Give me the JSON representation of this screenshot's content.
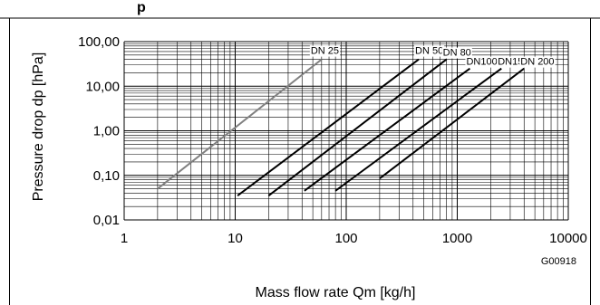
{
  "heading_fragment": "p",
  "figure_code": "G00918",
  "chart_data": {
    "type": "line",
    "title": "",
    "xlabel": "Mass flow rate Qm  [kg/h]",
    "ylabel": "Pressure drop dp  [hPa]",
    "x_scale": "log",
    "y_scale": "log",
    "xlim": [
      1,
      10000
    ],
    "ylim": [
      0.01,
      100
    ],
    "grid": true,
    "x_ticks": [
      {
        "value": 1,
        "label": "1"
      },
      {
        "value": 10,
        "label": "10"
      },
      {
        "value": 100,
        "label": "100"
      },
      {
        "value": 1000,
        "label": "1000"
      },
      {
        "value": 10000,
        "label": "10000"
      }
    ],
    "y_ticks": [
      {
        "value": 0.01,
        "label": "0,01"
      },
      {
        "value": 0.1,
        "label": "0,10"
      },
      {
        "value": 1,
        "label": "1,00"
      },
      {
        "value": 10,
        "label": "10,00"
      },
      {
        "value": 100,
        "label": "100,00"
      }
    ],
    "series": [
      {
        "name": "DN 25",
        "color": "#808080",
        "x": [
          2,
          60
        ],
        "y": [
          0.05,
          40
        ]
      },
      {
        "name": "DN 50",
        "color": "#000000",
        "x": [
          10.5,
          450
        ],
        "y": [
          0.035,
          40
        ]
      },
      {
        "name": "DN 80",
        "color": "#000000",
        "x": [
          20,
          800
        ],
        "y": [
          0.035,
          40
        ]
      },
      {
        "name": "DN100",
        "color": "#000000",
        "x": [
          42,
          1300
        ],
        "y": [
          0.045,
          25
        ]
      },
      {
        "name": "DN150",
        "color": "#000000",
        "x": [
          80,
          2500
        ],
        "y": [
          0.045,
          25
        ]
      },
      {
        "name": "DN 200",
        "color": "#000000",
        "x": [
          200,
          4000
        ],
        "y": [
          0.085,
          25
        ]
      }
    ]
  }
}
